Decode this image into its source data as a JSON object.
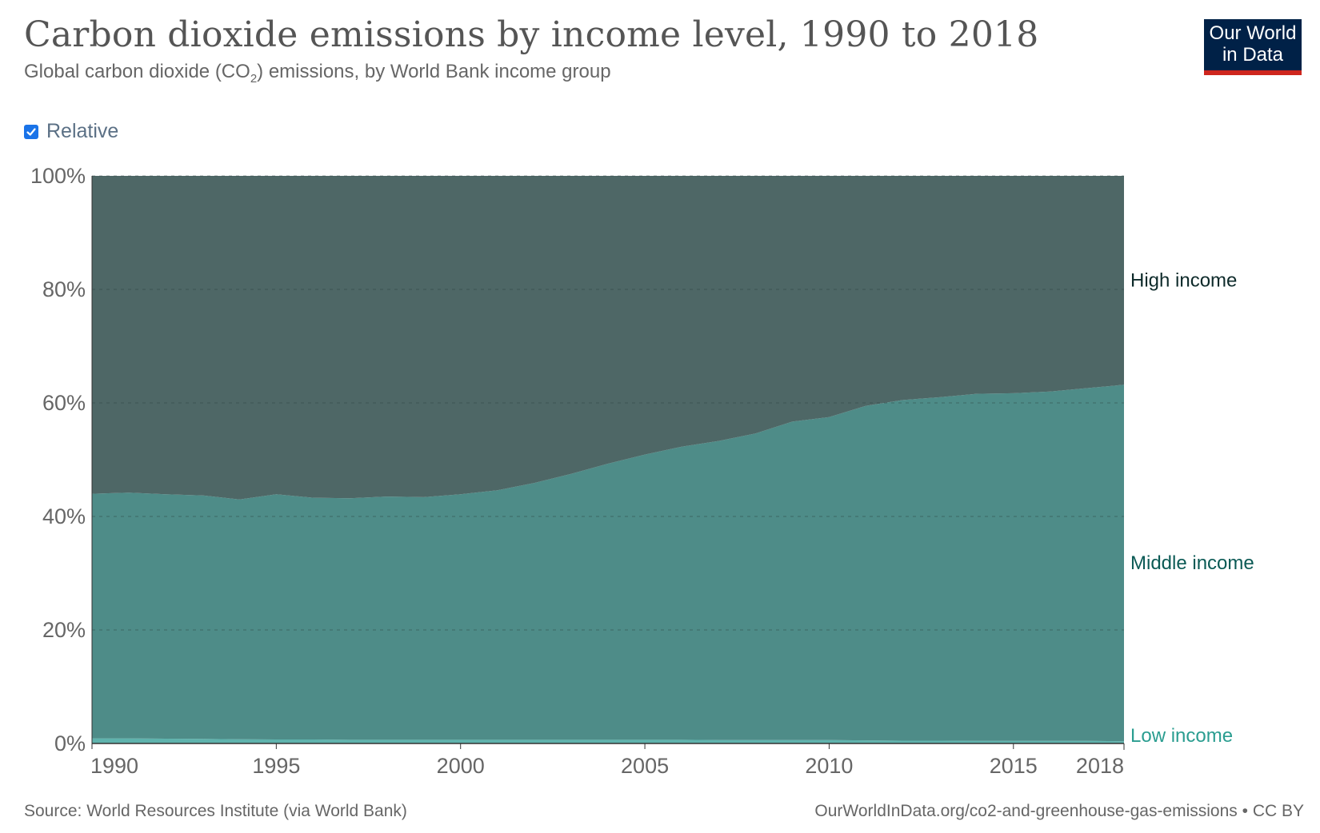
{
  "header": {
    "title": "Carbon dioxide emissions by income level, 1990 to 2018",
    "subtitle_pre": "Global carbon dioxide (CO",
    "subtitle_sub": "2",
    "subtitle_post": ") emissions, by World Bank income group"
  },
  "logo": {
    "line1": "Our World",
    "line2": "in Data"
  },
  "controls": {
    "relative_label": "Relative",
    "relative_checked": true
  },
  "footer": {
    "source": "Source: World Resources Institute (via World Bank)",
    "url": "OurWorldInData.org/co2-and-greenhouse-gas-emissions • CC BY"
  },
  "colors": {
    "high": "#4e6766",
    "middle": "#4e8c88",
    "low": "#5fb3ad",
    "high_label": "#0d2a2a",
    "middle_label": "#0b5a55",
    "low_label": "#2a9d90"
  },
  "chart_data": {
    "type": "area",
    "stacked": true,
    "relative": true,
    "x": [
      1990,
      1991,
      1992,
      1993,
      1994,
      1995,
      1996,
      1997,
      1998,
      1999,
      2000,
      2001,
      2002,
      2003,
      2004,
      2005,
      2006,
      2007,
      2008,
      2009,
      2010,
      2011,
      2012,
      2013,
      2014,
      2015,
      2016,
      2017,
      2018
    ],
    "series": [
      {
        "name": "Low income",
        "label": "Low income",
        "values": [
          0.9,
          0.9,
          0.85,
          0.8,
          0.75,
          0.7,
          0.7,
          0.65,
          0.65,
          0.65,
          0.65,
          0.65,
          0.65,
          0.65,
          0.65,
          0.65,
          0.65,
          0.6,
          0.6,
          0.6,
          0.6,
          0.55,
          0.5,
          0.5,
          0.45,
          0.45,
          0.45,
          0.45,
          0.4
        ]
      },
      {
        "name": "Middle income",
        "label": "Middle income",
        "values": [
          43.1,
          43.3,
          43.05,
          42.9,
          42.25,
          43.2,
          42.6,
          42.55,
          42.85,
          42.75,
          43.25,
          43.95,
          45.25,
          46.85,
          48.65,
          50.25,
          51.65,
          52.7,
          54.0,
          56.1,
          56.9,
          58.95,
          60.0,
          60.5,
          61.15,
          61.25,
          61.55,
          62.15,
          62.8
        ]
      },
      {
        "name": "High income",
        "label": "High income",
        "values": [
          56.0,
          55.8,
          56.1,
          56.3,
          57.0,
          56.1,
          56.7,
          56.8,
          56.5,
          56.6,
          56.1,
          55.4,
          54.1,
          52.5,
          50.7,
          49.1,
          47.7,
          46.7,
          45.4,
          43.3,
          42.5,
          40.5,
          39.5,
          39.0,
          38.4,
          38.3,
          38.0,
          37.4,
          36.8
        ]
      }
    ],
    "y_ticks": [
      "0%",
      "20%",
      "40%",
      "60%",
      "80%",
      "100%"
    ],
    "y_tick_values": [
      0,
      20,
      40,
      60,
      80,
      100
    ],
    "x_ticks": [
      "1990",
      "1995",
      "2000",
      "2005",
      "2010",
      "2015",
      "2018"
    ],
    "x_tick_values": [
      1990,
      1995,
      2000,
      2005,
      2010,
      2015,
      2018
    ],
    "ylim": [
      0,
      100
    ],
    "xlim": [
      1990,
      2018
    ],
    "legend": "inline-right"
  }
}
